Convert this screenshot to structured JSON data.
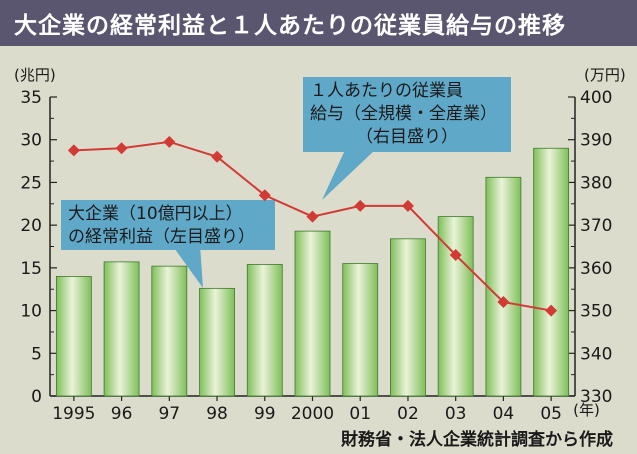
{
  "title": "大企業の経常利益と１人あたりの従業員給与の推移",
  "source": "財務省・法人企業統計調査から作成",
  "colors": {
    "title_bg": "#5b5670",
    "bar_fill": "#7fbf5a",
    "bar_light": "#eaf3d8",
    "line": "#d23a36",
    "callout": "#5fa8c8"
  },
  "chart_data": {
    "type": "bar",
    "categories": [
      "1995",
      "96",
      "97",
      "98",
      "99",
      "2000",
      "01",
      "02",
      "03",
      "04",
      "05"
    ],
    "x_unit": "(年)",
    "y_left": {
      "unit": "(兆円)",
      "range": [
        0,
        35
      ],
      "ticks": [
        0,
        5,
        10,
        15,
        20,
        25,
        30,
        35
      ]
    },
    "y_right": {
      "unit": "(万円)",
      "range": [
        330,
        400
      ],
      "ticks": [
        330,
        340,
        350,
        360,
        370,
        380,
        390,
        400
      ]
    },
    "series": [
      {
        "type": "bar",
        "axis": "left",
        "values": [
          14,
          15.7,
          15.2,
          12.6,
          15.4,
          19.3,
          15.5,
          18.4,
          21,
          25.6,
          29
        ]
      },
      {
        "type": "line",
        "axis": "right",
        "values": [
          387.5,
          388,
          389.5,
          386,
          377,
          372,
          374.5,
          374.5,
          363,
          352,
          350
        ]
      }
    ],
    "annotations": [
      {
        "lines": [
          "大企業（10億円以上）",
          "の経常利益（左目盛り）"
        ]
      },
      {
        "lines": [
          "１人あたりの従業員",
          "給与（全規模・全産業）",
          "（右目盛り）"
        ]
      }
    ],
    "grid": false,
    "legend": "none"
  }
}
